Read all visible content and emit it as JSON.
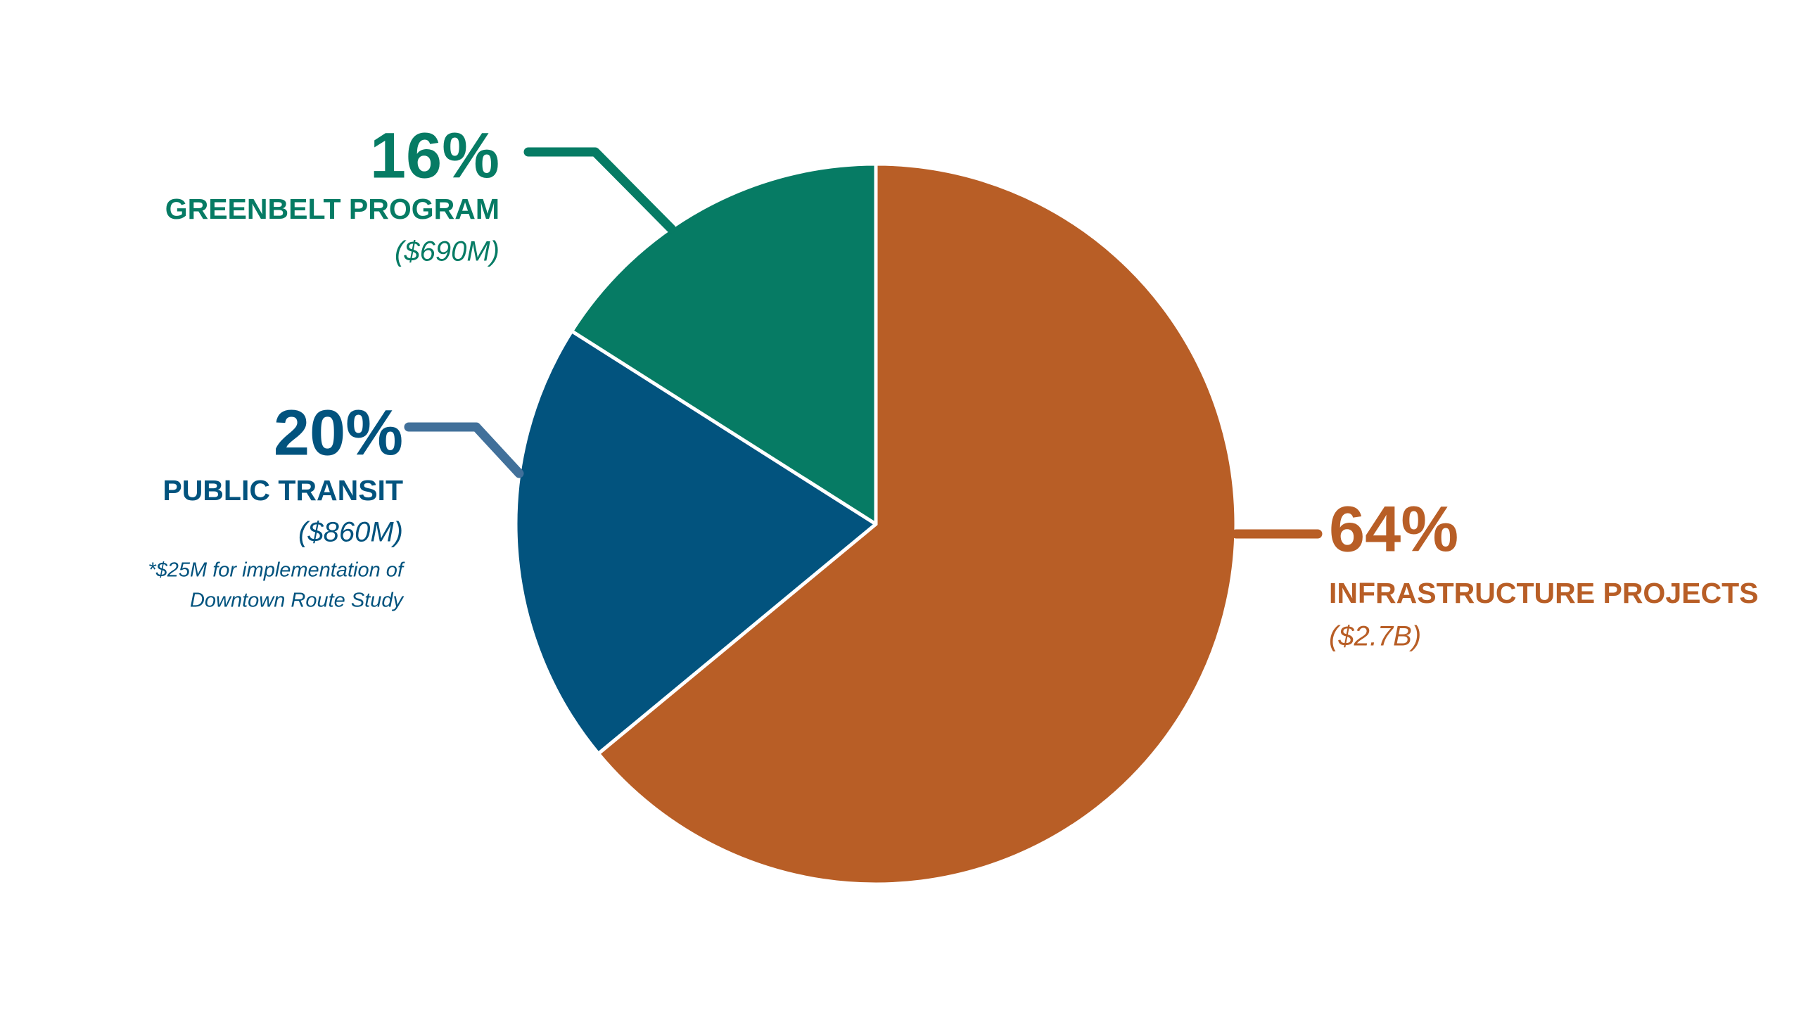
{
  "chart_data": {
    "type": "pie",
    "categories": [
      "INFRASTRUCTURE PROJECTS",
      "PUBLIC TRANSIT",
      "GREENBELT PROGRAM"
    ],
    "values": [
      64,
      20,
      16
    ],
    "value_labels": [
      "64%",
      "20%",
      "16%"
    ],
    "amounts": [
      "($2.7B)",
      "($860M)",
      "($690M)"
    ],
    "colors": [
      "#b85e26",
      "#02537e",
      "#067b64"
    ],
    "annotation": {
      "lines": [
        "*$25M for implementation of",
        "Downtown Route Study"
      ]
    }
  }
}
